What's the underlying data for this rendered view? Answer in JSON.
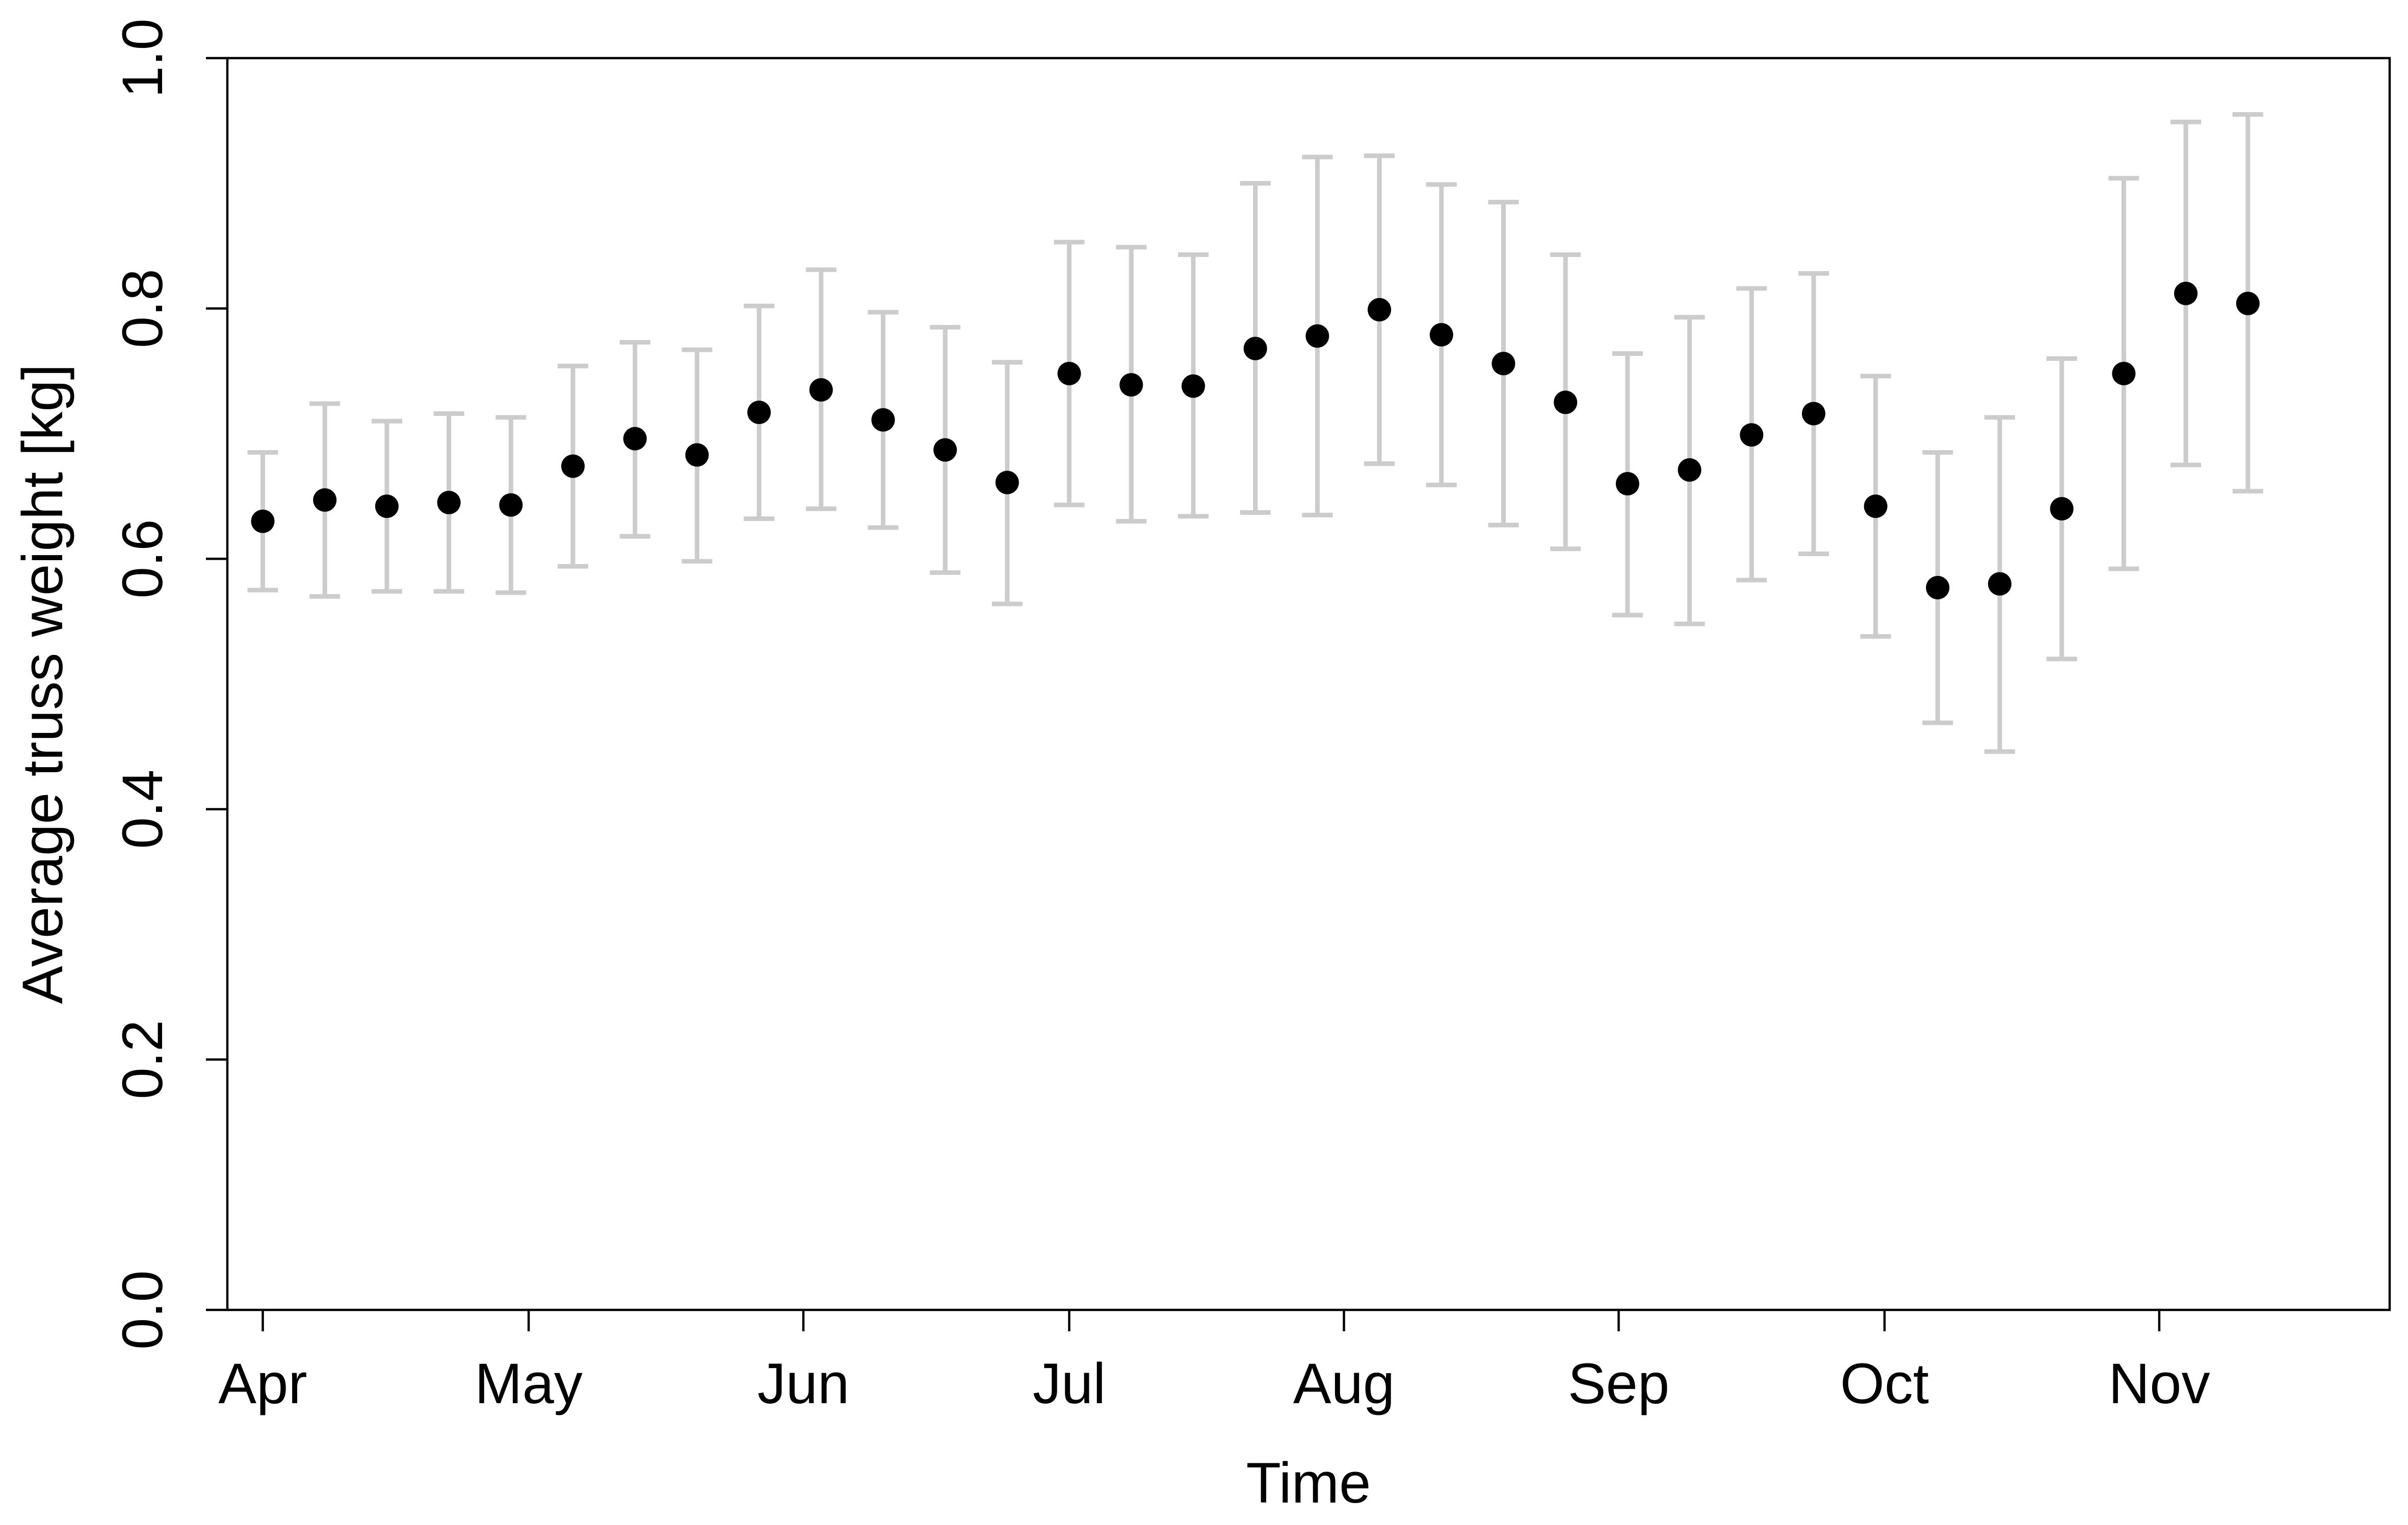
{
  "chart_data": {
    "type": "scatter",
    "title": "",
    "xlabel": "Time",
    "ylabel": "Average truss weight [kg]",
    "x_ticks": [
      "Apr",
      "May",
      "Jun",
      "Jul",
      "Aug",
      "Sep",
      "Oct",
      "Nov"
    ],
    "y_ticks": [
      "0.0",
      "0.2",
      "0.4",
      "0.6",
      "0.8",
      "1.0"
    ],
    "ylim": [
      0,
      1
    ],
    "xlim": [
      "2013-03-28",
      "2013-11-27"
    ],
    "grid": false,
    "legend": "none",
    "point_color": "#000000",
    "errorbar_color": "#cccccc",
    "points": [
      {
        "date": "2013-04-01",
        "y": 0.63,
        "ymin": 0.575,
        "ymax": 0.685
      },
      {
        "date": "2013-04-08",
        "y": 0.647,
        "ymin": 0.57,
        "ymax": 0.724
      },
      {
        "date": "2013-04-15",
        "y": 0.642,
        "ymin": 0.574,
        "ymax": 0.71
      },
      {
        "date": "2013-04-22",
        "y": 0.645,
        "ymin": 0.574,
        "ymax": 0.716
      },
      {
        "date": "2013-04-29",
        "y": 0.643,
        "ymin": 0.573,
        "ymax": 0.713
      },
      {
        "date": "2013-05-06",
        "y": 0.674,
        "ymin": 0.594,
        "ymax": 0.754
      },
      {
        "date": "2013-05-13",
        "y": 0.696,
        "ymin": 0.618,
        "ymax": 0.773
      },
      {
        "date": "2013-05-20",
        "y": 0.683,
        "ymin": 0.598,
        "ymax": 0.767
      },
      {
        "date": "2013-05-27",
        "y": 0.717,
        "ymin": 0.632,
        "ymax": 0.802
      },
      {
        "date": "2013-06-03",
        "y": 0.735,
        "ymin": 0.64,
        "ymax": 0.831
      },
      {
        "date": "2013-06-10",
        "y": 0.711,
        "ymin": 0.625,
        "ymax": 0.797
      },
      {
        "date": "2013-06-17",
        "y": 0.687,
        "ymin": 0.589,
        "ymax": 0.785
      },
      {
        "date": "2013-06-24",
        "y": 0.661,
        "ymin": 0.564,
        "ymax": 0.757
      },
      {
        "date": "2013-07-01",
        "y": 0.748,
        "ymin": 0.643,
        "ymax": 0.853
      },
      {
        "date": "2013-07-08",
        "y": 0.739,
        "ymin": 0.63,
        "ymax": 0.849
      },
      {
        "date": "2013-07-15",
        "y": 0.738,
        "ymin": 0.634,
        "ymax": 0.843
      },
      {
        "date": "2013-07-22",
        "y": 0.768,
        "ymin": 0.637,
        "ymax": 0.9
      },
      {
        "date": "2013-07-29",
        "y": 0.778,
        "ymin": 0.635,
        "ymax": 0.921
      },
      {
        "date": "2013-08-05",
        "y": 0.799,
        "ymin": 0.676,
        "ymax": 0.922
      },
      {
        "date": "2013-08-12",
        "y": 0.779,
        "ymin": 0.659,
        "ymax": 0.899
      },
      {
        "date": "2013-08-19",
        "y": 0.756,
        "ymin": 0.627,
        "ymax": 0.885
      },
      {
        "date": "2013-08-26",
        "y": 0.725,
        "ymin": 0.608,
        "ymax": 0.843
      },
      {
        "date": "2013-09-02",
        "y": 0.66,
        "ymin": 0.555,
        "ymax": 0.764
      },
      {
        "date": "2013-09-09",
        "y": 0.671,
        "ymin": 0.548,
        "ymax": 0.793
      },
      {
        "date": "2013-09-16",
        "y": 0.699,
        "ymin": 0.583,
        "ymax": 0.816
      },
      {
        "date": "2013-09-23",
        "y": 0.716,
        "ymin": 0.604,
        "ymax": 0.828
      },
      {
        "date": "2013-09-30",
        "y": 0.642,
        "ymin": 0.538,
        "ymax": 0.746
      },
      {
        "date": "2013-10-07",
        "y": 0.577,
        "ymin": 0.469,
        "ymax": 0.685
      },
      {
        "date": "2013-10-14",
        "y": 0.58,
        "ymin": 0.446,
        "ymax": 0.713
      },
      {
        "date": "2013-10-21",
        "y": 0.64,
        "ymin": 0.52,
        "ymax": 0.76
      },
      {
        "date": "2013-10-28",
        "y": 0.748,
        "ymin": 0.592,
        "ymax": 0.904
      },
      {
        "date": "2013-11-04",
        "y": 0.812,
        "ymin": 0.675,
        "ymax": 0.949
      },
      {
        "date": "2013-11-11",
        "y": 0.804,
        "ymin": 0.654,
        "ymax": 0.955
      }
    ]
  }
}
